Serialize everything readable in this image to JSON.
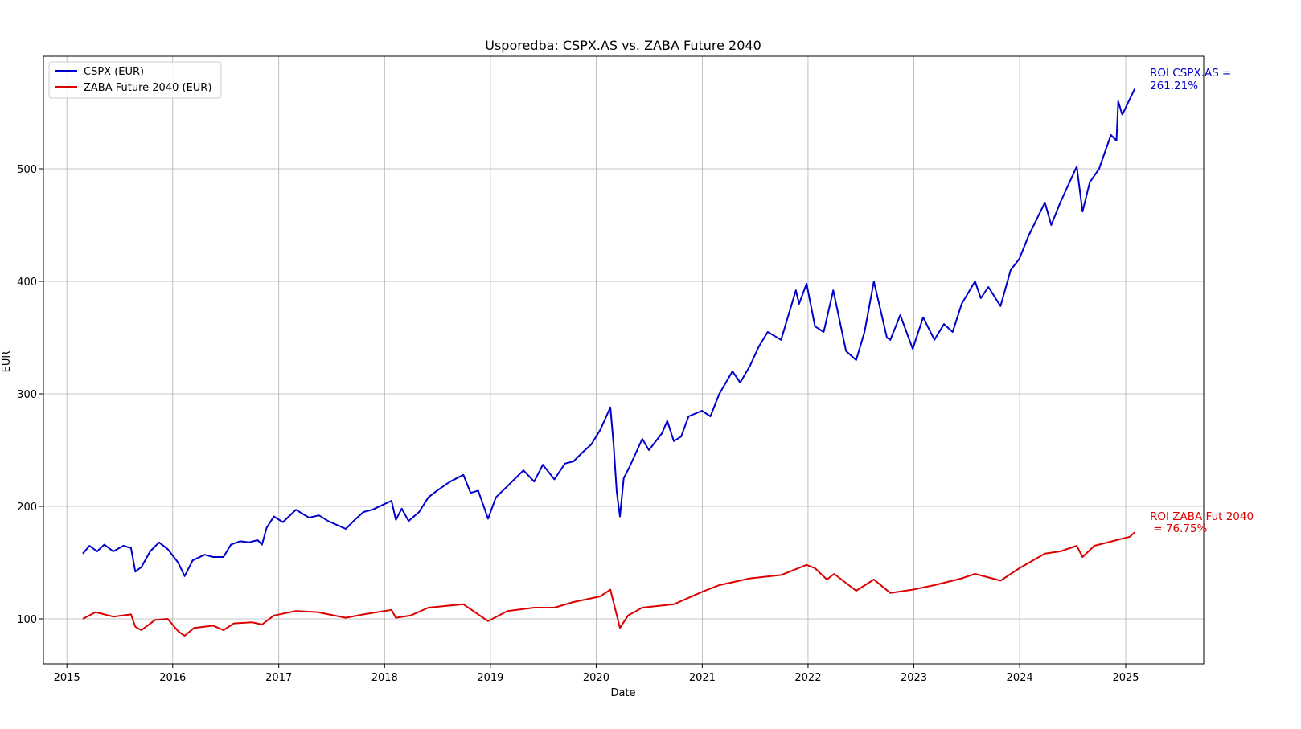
{
  "chart_data": {
    "type": "line",
    "title": "Usporedba: CSPX.AS vs. ZABA Future 2040",
    "xlabel": "Date",
    "ylabel": "EUR",
    "xlim": [
      "2014-10-12",
      "2025-09-27"
    ],
    "ylim": [
      60,
      600
    ],
    "x_ticks": [
      "2015",
      "2016",
      "2017",
      "2018",
      "2019",
      "2020",
      "2021",
      "2022",
      "2023",
      "2024",
      "2025"
    ],
    "y_ticks": [
      "100",
      "200",
      "300",
      "400",
      "500"
    ],
    "grid": true,
    "legend_position": "upper-left",
    "series": [
      {
        "name": "CSPX (EUR)",
        "color": "#0000cc",
        "points": [
          [
            "2015-02-25",
            158
          ],
          [
            "2015-03-20",
            165
          ],
          [
            "2015-04-15",
            160
          ],
          [
            "2015-05-10",
            166
          ],
          [
            "2015-06-10",
            160
          ],
          [
            "2015-07-15",
            165
          ],
          [
            "2015-08-10",
            163
          ],
          [
            "2015-08-25",
            142
          ],
          [
            "2015-09-15",
            146
          ],
          [
            "2015-10-15",
            160
          ],
          [
            "2015-11-15",
            168
          ],
          [
            "2015-12-15",
            162
          ],
          [
            "2016-01-20",
            150
          ],
          [
            "2016-02-11",
            138
          ],
          [
            "2016-03-10",
            152
          ],
          [
            "2016-04-20",
            157
          ],
          [
            "2016-05-20",
            155
          ],
          [
            "2016-06-24",
            155
          ],
          [
            "2016-07-20",
            166
          ],
          [
            "2016-08-20",
            169
          ],
          [
            "2016-09-20",
            168
          ],
          [
            "2016-10-20",
            170
          ],
          [
            "2016-11-04",
            166
          ],
          [
            "2016-11-20",
            181
          ],
          [
            "2016-12-15",
            191
          ],
          [
            "2017-01-15",
            186
          ],
          [
            "2017-03-01",
            197
          ],
          [
            "2017-04-15",
            190
          ],
          [
            "2017-05-20",
            192
          ],
          [
            "2017-06-20",
            187
          ],
          [
            "2017-08-20",
            180
          ],
          [
            "2017-09-20",
            188
          ],
          [
            "2017-10-20",
            195
          ],
          [
            "2017-11-20",
            197
          ],
          [
            "2018-01-25",
            205
          ],
          [
            "2018-02-09",
            188
          ],
          [
            "2018-03-01",
            198
          ],
          [
            "2018-03-25",
            187
          ],
          [
            "2018-04-30",
            195
          ],
          [
            "2018-06-01",
            208
          ],
          [
            "2018-07-01",
            214
          ],
          [
            "2018-08-15",
            222
          ],
          [
            "2018-09-30",
            228
          ],
          [
            "2018-10-25",
            212
          ],
          [
            "2018-11-20",
            214
          ],
          [
            "2018-12-24",
            189
          ],
          [
            "2019-01-20",
            208
          ],
          [
            "2019-03-01",
            218
          ],
          [
            "2019-04-25",
            232
          ],
          [
            "2019-06-01",
            222
          ],
          [
            "2019-07-01",
            237
          ],
          [
            "2019-08-10",
            224
          ],
          [
            "2019-09-15",
            238
          ],
          [
            "2019-10-15",
            240
          ],
          [
            "2019-11-15",
            248
          ],
          [
            "2019-12-15",
            255
          ],
          [
            "2020-01-15",
            268
          ],
          [
            "2020-02-19",
            288
          ],
          [
            "2020-03-01",
            255
          ],
          [
            "2020-03-12",
            213
          ],
          [
            "2020-03-23",
            191
          ],
          [
            "2020-04-05",
            225
          ],
          [
            "2020-04-25",
            235
          ],
          [
            "2020-06-08",
            260
          ],
          [
            "2020-07-01",
            250
          ],
          [
            "2020-08-15",
            265
          ],
          [
            "2020-09-02",
            276
          ],
          [
            "2020-09-25",
            258
          ],
          [
            "2020-10-20",
            262
          ],
          [
            "2020-11-15",
            280
          ],
          [
            "2020-12-31",
            285
          ],
          [
            "2021-01-29",
            280
          ],
          [
            "2021-03-01",
            300
          ],
          [
            "2021-04-15",
            320
          ],
          [
            "2021-05-12",
            310
          ],
          [
            "2021-06-15",
            325
          ],
          [
            "2021-07-15",
            342
          ],
          [
            "2021-08-15",
            355
          ],
          [
            "2021-09-30",
            348
          ],
          [
            "2021-11-20",
            392
          ],
          [
            "2021-12-01",
            380
          ],
          [
            "2021-12-27",
            398
          ],
          [
            "2022-01-25",
            360
          ],
          [
            "2022-02-24",
            355
          ],
          [
            "2022-03-29",
            392
          ],
          [
            "2022-05-12",
            338
          ],
          [
            "2022-06-16",
            330
          ],
          [
            "2022-07-15",
            355
          ],
          [
            "2022-08-16",
            400
          ],
          [
            "2022-09-30",
            350
          ],
          [
            "2022-10-12",
            348
          ],
          [
            "2022-11-15",
            370
          ],
          [
            "2022-12-28",
            340
          ],
          [
            "2023-02-02",
            368
          ],
          [
            "2023-03-13",
            348
          ],
          [
            "2023-04-15",
            362
          ],
          [
            "2023-05-15",
            355
          ],
          [
            "2023-06-15",
            380
          ],
          [
            "2023-07-31",
            400
          ],
          [
            "2023-08-20",
            385
          ],
          [
            "2023-09-15",
            395
          ],
          [
            "2023-10-27",
            378
          ],
          [
            "2023-12-01",
            410
          ],
          [
            "2023-12-31",
            420
          ],
          [
            "2024-01-31",
            440
          ],
          [
            "2024-03-28",
            470
          ],
          [
            "2024-04-19",
            450
          ],
          [
            "2024-05-20",
            470
          ],
          [
            "2024-07-16",
            502
          ],
          [
            "2024-08-05",
            462
          ],
          [
            "2024-08-30",
            488
          ],
          [
            "2024-10-01",
            500
          ],
          [
            "2024-11-11",
            530
          ],
          [
            "2024-11-30",
            525
          ],
          [
            "2024-12-06",
            560
          ],
          [
            "2024-12-20",
            548
          ],
          [
            "2025-01-15",
            562
          ],
          [
            "2025-02-01",
            571
          ]
        ]
      },
      {
        "name": "ZABA Future 2040 (EUR)",
        "color": "#dd0000",
        "points": [
          [
            "2015-02-25",
            100
          ],
          [
            "2015-04-10",
            106
          ],
          [
            "2015-06-10",
            102
          ],
          [
            "2015-08-10",
            104
          ],
          [
            "2015-08-25",
            93
          ],
          [
            "2015-09-15",
            90
          ],
          [
            "2015-11-01",
            99
          ],
          [
            "2015-12-15",
            100
          ],
          [
            "2016-01-20",
            89
          ],
          [
            "2016-02-11",
            85
          ],
          [
            "2016-03-15",
            92
          ],
          [
            "2016-05-20",
            94
          ],
          [
            "2016-06-24",
            90
          ],
          [
            "2016-07-30",
            96
          ],
          [
            "2016-09-30",
            97
          ],
          [
            "2016-11-04",
            95
          ],
          [
            "2016-12-15",
            103
          ],
          [
            "2017-03-01",
            107
          ],
          [
            "2017-05-15",
            106
          ],
          [
            "2017-08-20",
            101
          ],
          [
            "2017-10-20",
            104
          ],
          [
            "2018-01-25",
            108
          ],
          [
            "2018-02-09",
            101
          ],
          [
            "2018-04-01",
            103
          ],
          [
            "2018-06-01",
            110
          ],
          [
            "2018-09-30",
            113
          ],
          [
            "2018-12-24",
            98
          ],
          [
            "2019-03-01",
            107
          ],
          [
            "2019-06-01",
            110
          ],
          [
            "2019-08-10",
            110
          ],
          [
            "2019-10-15",
            115
          ],
          [
            "2020-01-15",
            120
          ],
          [
            "2020-02-19",
            126
          ],
          [
            "2020-03-23",
            92
          ],
          [
            "2020-04-20",
            103
          ],
          [
            "2020-06-08",
            110
          ],
          [
            "2020-09-25",
            113
          ],
          [
            "2020-12-31",
            124
          ],
          [
            "2021-03-01",
            130
          ],
          [
            "2021-06-15",
            136
          ],
          [
            "2021-09-30",
            139
          ],
          [
            "2021-12-27",
            148
          ],
          [
            "2022-01-25",
            145
          ],
          [
            "2022-03-07",
            135
          ],
          [
            "2022-04-01",
            140
          ],
          [
            "2022-06-16",
            125
          ],
          [
            "2022-08-16",
            135
          ],
          [
            "2022-10-12",
            123
          ],
          [
            "2022-12-28",
            126
          ],
          [
            "2023-03-13",
            130
          ],
          [
            "2023-06-15",
            136
          ],
          [
            "2023-07-31",
            140
          ],
          [
            "2023-10-27",
            134
          ],
          [
            "2023-12-31",
            145
          ],
          [
            "2024-03-28",
            158
          ],
          [
            "2024-05-20",
            160
          ],
          [
            "2024-07-16",
            165
          ],
          [
            "2024-08-05",
            155
          ],
          [
            "2024-09-15",
            165
          ],
          [
            "2024-11-30",
            170
          ],
          [
            "2025-01-15",
            173
          ],
          [
            "2025-02-01",
            177
          ]
        ]
      }
    ],
    "annotations": [
      {
        "lines": [
          "ROI CSPX.AS =",
          "261.21%"
        ],
        "color": "#0000cc"
      },
      {
        "lines": [
          "ROI ZABA Fut 2040",
          " = 76.75%"
        ],
        "color": "#dd0000"
      }
    ]
  }
}
